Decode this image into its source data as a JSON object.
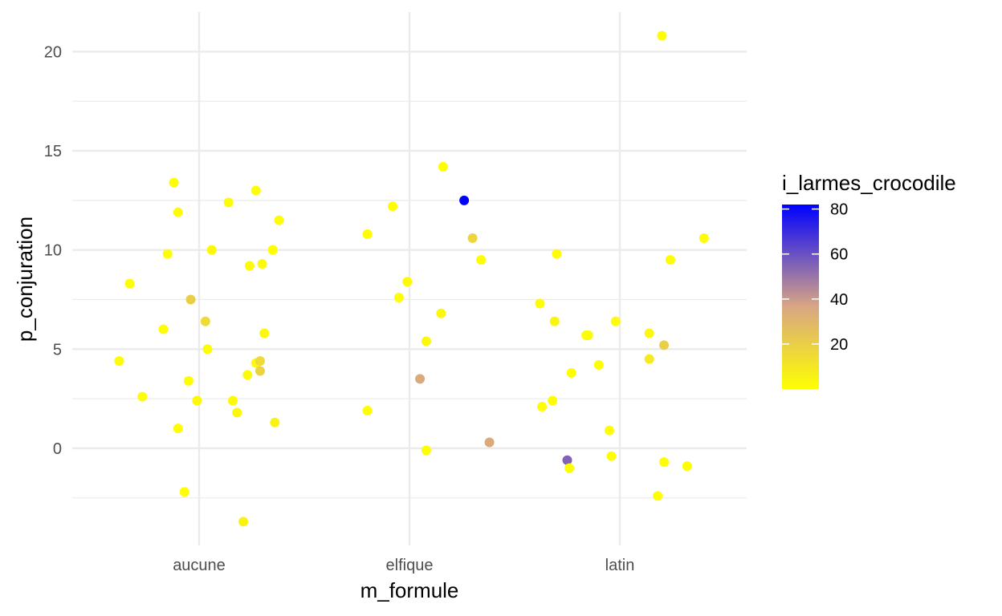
{
  "chart_data": {
    "type": "scatter",
    "title": "",
    "xlabel": "m_formule",
    "ylabel": "p_conjuration",
    "categories": [
      "aucune",
      "elfique",
      "latin"
    ],
    "y_ticks": [
      "0",
      "5",
      "10",
      "15",
      "20"
    ],
    "ylim": [
      -4.9,
      22.0
    ],
    "x_jitter_note": "",
    "grid": true,
    "legend": {
      "title": "i_larmes_crocodile",
      "placement": "right",
      "ticks": [
        "20",
        "40",
        "60",
        "80"
      ],
      "min": 0,
      "max": 82,
      "low_color": "#ffff00",
      "high_color": "#0000ff"
    },
    "points": [
      {
        "x": "aucune",
        "jitter": -0.38,
        "y": 4.4,
        "c": 1
      },
      {
        "x": "aucune",
        "jitter": -0.33,
        "y": 8.3,
        "c": 1
      },
      {
        "x": "aucune",
        "jitter": -0.27,
        "y": 2.6,
        "c": 1
      },
      {
        "x": "aucune",
        "jitter": -0.17,
        "y": 6.0,
        "c": 1
      },
      {
        "x": "aucune",
        "jitter": -0.15,
        "y": 9.8,
        "c": 1
      },
      {
        "x": "aucune",
        "jitter": -0.12,
        "y": 13.4,
        "c": 1
      },
      {
        "x": "aucune",
        "jitter": -0.1,
        "y": 11.9,
        "c": 1
      },
      {
        "x": "aucune",
        "jitter": -0.1,
        "y": 1.0,
        "c": 1
      },
      {
        "x": "aucune",
        "jitter": -0.07,
        "y": -2.2,
        "c": 1
      },
      {
        "x": "aucune",
        "jitter": -0.05,
        "y": 3.4,
        "c": 1
      },
      {
        "x": "aucune",
        "jitter": -0.04,
        "y": 7.5,
        "c": 20
      },
      {
        "x": "aucune",
        "jitter": -0.01,
        "y": 2.4,
        "c": 3
      },
      {
        "x": "aucune",
        "jitter": 0.03,
        "y": 6.4,
        "c": 15
      },
      {
        "x": "aucune",
        "jitter": 0.04,
        "y": 5.0,
        "c": 1
      },
      {
        "x": "aucune",
        "jitter": 0.06,
        "y": 10.0,
        "c": 3
      },
      {
        "x": "aucune",
        "jitter": 0.14,
        "y": 12.4,
        "c": 1
      },
      {
        "x": "aucune",
        "jitter": 0.16,
        "y": 2.4,
        "c": 2
      },
      {
        "x": "aucune",
        "jitter": 0.18,
        "y": 1.8,
        "c": 3
      },
      {
        "x": "aucune",
        "jitter": 0.21,
        "y": -3.7,
        "c": 5
      },
      {
        "x": "aucune",
        "jitter": 0.23,
        "y": 3.7,
        "c": 2
      },
      {
        "x": "aucune",
        "jitter": 0.24,
        "y": 9.2,
        "c": 2
      },
      {
        "x": "aucune",
        "jitter": 0.27,
        "y": 13.0,
        "c": 1
      },
      {
        "x": "aucune",
        "jitter": 0.27,
        "y": 4.3,
        "c": 2
      },
      {
        "x": "aucune",
        "jitter": 0.29,
        "y": 3.9,
        "c": 18
      },
      {
        "x": "aucune",
        "jitter": 0.29,
        "y": 4.4,
        "c": 15
      },
      {
        "x": "aucune",
        "jitter": 0.3,
        "y": 9.3,
        "c": 2
      },
      {
        "x": "aucune",
        "jitter": 0.31,
        "y": 5.8,
        "c": 3
      },
      {
        "x": "aucune",
        "jitter": 0.35,
        "y": 10.0,
        "c": 1
      },
      {
        "x": "aucune",
        "jitter": 0.36,
        "y": 1.3,
        "c": 5
      },
      {
        "x": "aucune",
        "jitter": 0.38,
        "y": 11.5,
        "c": 1
      },
      {
        "x": "elfique",
        "jitter": -0.2,
        "y": 10.8,
        "c": 1
      },
      {
        "x": "elfique",
        "jitter": -0.2,
        "y": 1.9,
        "c": 1
      },
      {
        "x": "elfique",
        "jitter": -0.08,
        "y": 12.2,
        "c": 1
      },
      {
        "x": "elfique",
        "jitter": -0.05,
        "y": 7.6,
        "c": 1
      },
      {
        "x": "elfique",
        "jitter": -0.01,
        "y": 8.4,
        "c": 2
      },
      {
        "x": "elfique",
        "jitter": 0.05,
        "y": 3.5,
        "c": 35
      },
      {
        "x": "elfique",
        "jitter": 0.08,
        "y": 5.4,
        "c": 3
      },
      {
        "x": "elfique",
        "jitter": 0.08,
        "y": -0.1,
        "c": 1
      },
      {
        "x": "elfique",
        "jitter": 0.15,
        "y": 6.8,
        "c": 3
      },
      {
        "x": "elfique",
        "jitter": 0.16,
        "y": 14.2,
        "c": 1
      },
      {
        "x": "elfique",
        "jitter": 0.26,
        "y": 12.5,
        "c": 82
      },
      {
        "x": "elfique",
        "jitter": 0.3,
        "y": 10.6,
        "c": 17
      },
      {
        "x": "elfique",
        "jitter": 0.34,
        "y": 9.5,
        "c": 1
      },
      {
        "x": "elfique",
        "jitter": 0.38,
        "y": 0.3,
        "c": 35
      },
      {
        "x": "latin",
        "jitter": -0.38,
        "y": 7.3,
        "c": 1
      },
      {
        "x": "latin",
        "jitter": -0.37,
        "y": 2.1,
        "c": 1
      },
      {
        "x": "latin",
        "jitter": -0.32,
        "y": 2.4,
        "c": 1
      },
      {
        "x": "latin",
        "jitter": -0.31,
        "y": 6.4,
        "c": 4
      },
      {
        "x": "latin",
        "jitter": -0.3,
        "y": 9.8,
        "c": 1
      },
      {
        "x": "latin",
        "jitter": -0.25,
        "y": -0.6,
        "c": 55
      },
      {
        "x": "latin",
        "jitter": -0.24,
        "y": -1.0,
        "c": 1
      },
      {
        "x": "latin",
        "jitter": -0.23,
        "y": 3.8,
        "c": 1
      },
      {
        "x": "latin",
        "jitter": -0.16,
        "y": 5.7,
        "c": 1
      },
      {
        "x": "latin",
        "jitter": -0.15,
        "y": 5.7,
        "c": 2
      },
      {
        "x": "latin",
        "jitter": -0.1,
        "y": 4.2,
        "c": 1
      },
      {
        "x": "latin",
        "jitter": -0.05,
        "y": 0.9,
        "c": 1
      },
      {
        "x": "latin",
        "jitter": -0.04,
        "y": -0.4,
        "c": 1
      },
      {
        "x": "latin",
        "jitter": -0.02,
        "y": 6.4,
        "c": 1
      },
      {
        "x": "latin",
        "jitter": 0.14,
        "y": 5.8,
        "c": 3
      },
      {
        "x": "latin",
        "jitter": 0.14,
        "y": 4.5,
        "c": 8
      },
      {
        "x": "latin",
        "jitter": 0.18,
        "y": -2.4,
        "c": 1
      },
      {
        "x": "latin",
        "jitter": 0.2,
        "y": 20.8,
        "c": 1
      },
      {
        "x": "latin",
        "jitter": 0.21,
        "y": 5.2,
        "c": 20
      },
      {
        "x": "latin",
        "jitter": 0.21,
        "y": -0.7,
        "c": 1
      },
      {
        "x": "latin",
        "jitter": 0.24,
        "y": 9.5,
        "c": 1
      },
      {
        "x": "latin",
        "jitter": 0.32,
        "y": -0.9,
        "c": 1
      },
      {
        "x": "latin",
        "jitter": 0.4,
        "y": 10.6,
        "c": 1
      }
    ]
  }
}
